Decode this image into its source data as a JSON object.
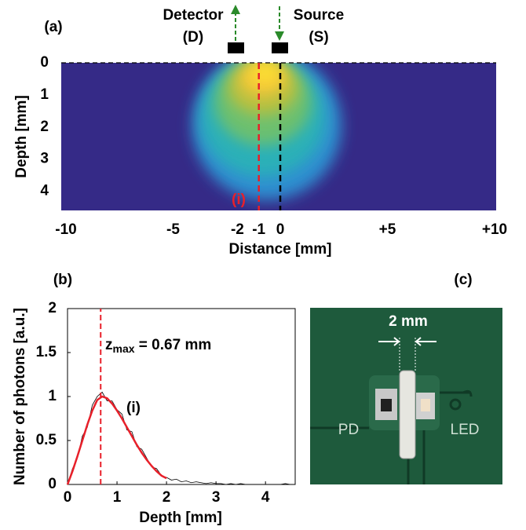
{
  "chart_data": [
    {
      "type": "heatmap",
      "panel": "(a)",
      "xlabel": "Distance [mm]",
      "ylabel": "Depth [mm]",
      "xlim": [
        -10,
        10
      ],
      "ylim": [
        0,
        4.6
      ],
      "y_inverted": true,
      "xticks": [
        -10,
        -5,
        -2,
        -1,
        0,
        {
          "value": 5,
          "label": "+5"
        },
        {
          "value": 10,
          "label": "+10"
        }
      ],
      "yticks": [
        0,
        1,
        2,
        3,
        4
      ],
      "annotations": [
        "Detector",
        "(D)",
        "Source",
        "(S)",
        "(i)"
      ],
      "vlines": [
        {
          "x": -1,
          "color": "#e8202a"
        },
        {
          "x": 0,
          "color": "#000000"
        }
      ],
      "hline": 0
    },
    {
      "type": "line",
      "panel": "(b)",
      "xlabel": "Depth [mm]",
      "ylabel": "Number of photons [a.u.]",
      "xlim": [
        0,
        4.6
      ],
      "ylim": [
        0,
        2
      ],
      "xticks": [
        0,
        1,
        2,
        3,
        4
      ],
      "yticks": [
        0,
        0.5,
        1,
        1.5,
        2
      ],
      "zmax": 0.67,
      "zmax_label": {
        "base": "z",
        "sub": "max",
        "rest": " = 0.67 mm"
      },
      "annotation": "(i)",
      "series": [
        {
          "color": "#000000",
          "width": 0.8,
          "x": [
            0,
            0.1,
            0.2,
            0.3,
            0.4,
            0.5,
            0.6,
            0.7,
            0.8,
            0.9,
            1,
            1.1,
            1.2,
            1.3,
            1.4,
            1.5,
            1.6,
            1.7,
            1.8,
            1.9,
            2,
            2.1,
            2.2,
            2.3,
            2.4,
            2.5,
            2.6,
            2.7,
            2.8,
            2.9,
            3,
            3.1,
            3.2,
            3.3,
            3.4,
            3.5,
            3.6,
            3.7,
            3.8,
            3.9,
            4,
            4.1,
            4.2,
            4.3,
            4.4,
            4.5
          ],
          "values": [
            0,
            0.18,
            0.3,
            0.55,
            0.65,
            0.9,
            1.0,
            1.05,
            0.95,
            0.95,
            0.85,
            0.8,
            0.62,
            0.6,
            0.43,
            0.4,
            0.3,
            0.2,
            0.18,
            0.1,
            0.08,
            0.05,
            0.06,
            0.03,
            0.04,
            0.02,
            0.03,
            0.02,
            0.01,
            0.02,
            0.01,
            0.01,
            0,
            0.01,
            0,
            0.01,
            0,
            0,
            0,
            0,
            0,
            0,
            0,
            0,
            0.01,
            0
          ]
        },
        {
          "color": "#e8202a",
          "width": 2.5,
          "x": [
            0,
            0.1,
            0.2,
            0.3,
            0.4,
            0.5,
            0.6,
            0.7,
            0.8,
            0.9,
            1,
            1.1,
            1.2,
            1.3,
            1.4,
            1.5,
            1.6,
            1.7,
            1.8,
            1.9,
            2
          ],
          "values": [
            0,
            0.15,
            0.32,
            0.5,
            0.68,
            0.84,
            0.96,
            1.0,
            0.98,
            0.92,
            0.84,
            0.75,
            0.65,
            0.55,
            0.45,
            0.36,
            0.28,
            0.21,
            0.15,
            0.1,
            0.07
          ]
        }
      ]
    }
  ],
  "photo": {
    "panel": "(c)",
    "scale": "2 mm",
    "left": "PD",
    "right": "LED"
  }
}
